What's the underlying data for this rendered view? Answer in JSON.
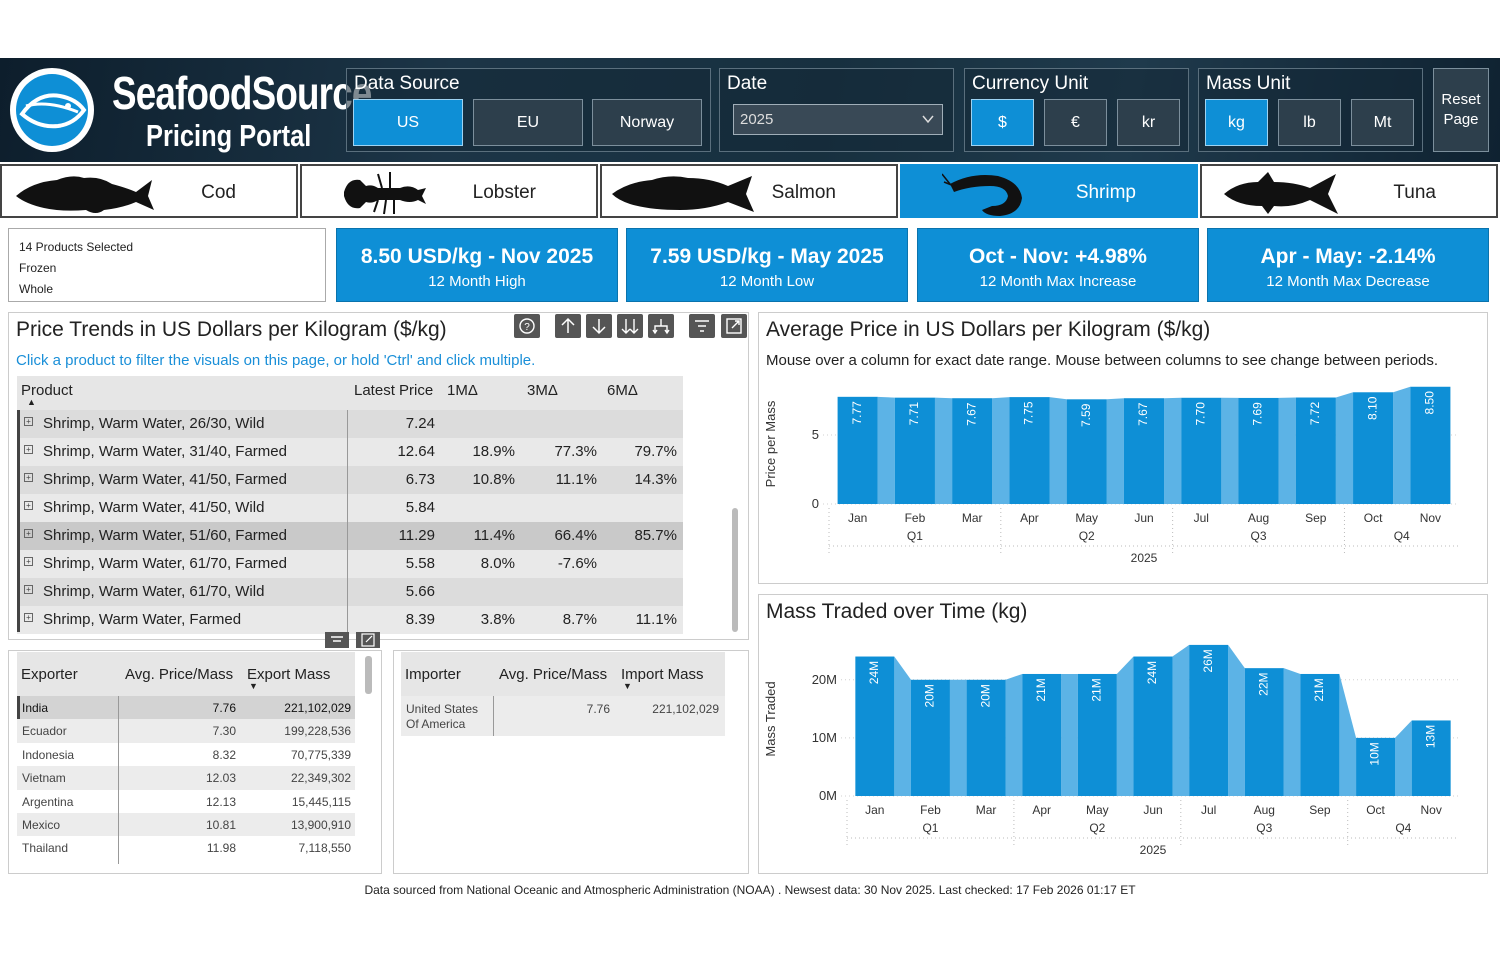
{
  "brand": {
    "name": "SeafoodSource",
    "subtitle": "Pricing Portal"
  },
  "filters": {
    "data_source": {
      "label": "Data Source",
      "options": [
        "US",
        "EU",
        "Norway"
      ],
      "selected": "US"
    },
    "date": {
      "label": "Date",
      "value": "2025"
    },
    "currency": {
      "label": "Currency Unit",
      "options": [
        "$",
        "€",
        "kr"
      ],
      "selected": "$"
    },
    "mass": {
      "label": "Mass Unit",
      "options": [
        "kg",
        "lb",
        "Mt"
      ],
      "selected": "kg"
    },
    "reset_label_1": "Reset",
    "reset_label_2": "Page"
  },
  "species_tabs": [
    {
      "label": "Cod",
      "icon": "cod-icon",
      "active": false
    },
    {
      "label": "Lobster",
      "icon": "lobster-icon",
      "active": false
    },
    {
      "label": "Salmon",
      "icon": "salmon-icon",
      "active": false
    },
    {
      "label": "Shrimp",
      "icon": "shrimp-icon",
      "active": true
    },
    {
      "label": "Tuna",
      "icon": "tuna-icon",
      "active": false
    }
  ],
  "selection_card": {
    "line1": "14 Products Selected",
    "line2": "Frozen",
    "line3": "Whole"
  },
  "kpis": [
    {
      "value": "8.50 USD/kg - Nov 2025",
      "label": "12 Month High"
    },
    {
      "value": "7.59 USD/kg - May 2025",
      "label": "12 Month Low"
    },
    {
      "value": "Oct - Nov: +4.98%",
      "label": "12 Month Max Increase"
    },
    {
      "value": "Apr - May: -2.14%",
      "label": "12 Month Max Decrease"
    }
  ],
  "price_trends": {
    "title": "Price Trends in US Dollars per Kilogram ($/kg)",
    "hint": "Click a product to filter the visuals on this page, or hold 'Ctrl' and click multiple.",
    "columns": [
      "Product",
      "Latest Price",
      "1MΔ",
      "3MΔ",
      "6MΔ"
    ],
    "rows": [
      {
        "name": "Shrimp, Warm Water, 26/30, Wild",
        "latest": "7.24",
        "m1": "",
        "m3": "",
        "m6": ""
      },
      {
        "name": "Shrimp, Warm Water, 31/40, Farmed",
        "latest": "12.64",
        "m1": "18.9%",
        "m3": "77.3%",
        "m6": "79.7%"
      },
      {
        "name": "Shrimp, Warm Water, 41/50, Farmed",
        "latest": "6.73",
        "m1": "10.8%",
        "m3": "11.1%",
        "m6": "14.3%"
      },
      {
        "name": "Shrimp, Warm Water, 41/50, Wild",
        "latest": "5.84",
        "m1": "",
        "m3": "",
        "m6": ""
      },
      {
        "name": "Shrimp, Warm Water, 51/60, Farmed",
        "latest": "11.29",
        "m1": "11.4%",
        "m3": "66.4%",
        "m6": "85.7%"
      },
      {
        "name": "Shrimp, Warm Water, 61/70, Farmed",
        "latest": "5.58",
        "m1": "8.0%",
        "m3": "-7.6%",
        "m6": ""
      },
      {
        "name": "Shrimp, Warm Water, 61/70, Wild",
        "latest": "5.66",
        "m1": "",
        "m3": "",
        "m6": ""
      },
      {
        "name": "Shrimp, Warm Water, Farmed",
        "latest": "8.39",
        "m1": "3.8%",
        "m3": "8.7%",
        "m6": "11.1%"
      }
    ]
  },
  "exporters": {
    "columns": [
      "Exporter",
      "Avg. Price/Mass",
      "Export Mass"
    ],
    "rows": [
      {
        "name": "India",
        "price": "7.76",
        "mass": "221,102,029"
      },
      {
        "name": "Ecuador",
        "price": "7.30",
        "mass": "199,228,536"
      },
      {
        "name": "Indonesia",
        "price": "8.32",
        "mass": "70,775,339"
      },
      {
        "name": "Vietnam",
        "price": "12.03",
        "mass": "22,349,302"
      },
      {
        "name": "Argentina",
        "price": "12.13",
        "mass": "15,445,115"
      },
      {
        "name": "Mexico",
        "price": "10.81",
        "mass": "13,900,910"
      },
      {
        "name": "Thailand",
        "price": "11.98",
        "mass": "7,118,550"
      }
    ]
  },
  "importers": {
    "columns": [
      "Importer",
      "Avg. Price/Mass",
      "Import Mass"
    ],
    "rows": [
      {
        "name1": "United States",
        "name2": "Of America",
        "price": "7.76",
        "mass": "221,102,029"
      }
    ]
  },
  "avg_price_chart": {
    "title": "Average Price in US Dollars per Kilogram ($/kg)",
    "subtitle": "Mouse over a column for exact date range. Mouse between columns to see change between periods."
  },
  "mass_chart": {
    "title": "Mass Traded over Time (kg)"
  },
  "footer": "Data sourced from National Oceanic and Atmospheric Administration (NOAA) . Newsest data: 30 Nov 2025. Last checked: 17 Feb 2026 01:17 ET",
  "colors": {
    "accent": "#0e8fd6",
    "accent_light": "#5cb3e6",
    "header_dark": "#1c3547"
  },
  "chart_data": [
    {
      "type": "bar",
      "title": "Average Price in US Dollars per Kilogram ($/kg)",
      "ylabel": "Price per Mass",
      "categories": [
        "Jan",
        "Feb",
        "Mar",
        "Apr",
        "May",
        "Jun",
        "Jul",
        "Aug",
        "Sep",
        "Oct",
        "Nov"
      ],
      "quarters": [
        {
          "label": "Q1",
          "months": [
            "Jan",
            "Feb",
            "Mar"
          ]
        },
        {
          "label": "Q2",
          "months": [
            "Apr",
            "May",
            "Jun"
          ]
        },
        {
          "label": "Q3",
          "months": [
            "Jul",
            "Aug",
            "Sep"
          ]
        },
        {
          "label": "Q4",
          "months": [
            "Oct",
            "Nov"
          ]
        }
      ],
      "year": "2025",
      "values": [
        7.77,
        7.71,
        7.67,
        7.75,
        7.59,
        7.67,
        7.7,
        7.69,
        7.72,
        8.1,
        8.5
      ],
      "data_labels": [
        "7.77",
        "7.71",
        "7.67",
        "7.75",
        "7.59",
        "7.67",
        "7.70",
        "7.69",
        "7.72",
        "8.10",
        "8.50"
      ],
      "yticks": [
        {
          "value": 0,
          "label": "0"
        },
        {
          "value": 5,
          "label": "5"
        }
      ],
      "ylim": [
        0,
        8.7
      ]
    },
    {
      "type": "bar",
      "title": "Mass Traded over Time (kg)",
      "ylabel": "Mass Traded",
      "categories": [
        "Jan",
        "Feb",
        "Mar",
        "Apr",
        "May",
        "Jun",
        "Jul",
        "Aug",
        "Sep",
        "Oct",
        "Nov"
      ],
      "quarters": [
        {
          "label": "Q1",
          "months": [
            "Jan",
            "Feb",
            "Mar"
          ]
        },
        {
          "label": "Q2",
          "months": [
            "Apr",
            "May",
            "Jun"
          ]
        },
        {
          "label": "Q3",
          "months": [
            "Jul",
            "Aug",
            "Sep"
          ]
        },
        {
          "label": "Q4",
          "months": [
            "Oct",
            "Nov"
          ]
        }
      ],
      "year": "2025",
      "values": [
        24000000,
        20000000,
        20000000,
        21000000,
        21000000,
        24000000,
        26000000,
        22000000,
        21000000,
        10000000,
        13000000
      ],
      "data_labels": [
        "24M",
        "20M",
        "20M",
        "21M",
        "21M",
        "24M",
        "26M",
        "22M",
        "21M",
        "10M",
        "13M"
      ],
      "yticks": [
        {
          "value": 0,
          "label": "0M"
        },
        {
          "value": 10000000,
          "label": "10M"
        },
        {
          "value": 20000000,
          "label": "20M"
        }
      ],
      "ylim": [
        0,
        26500000
      ]
    }
  ]
}
